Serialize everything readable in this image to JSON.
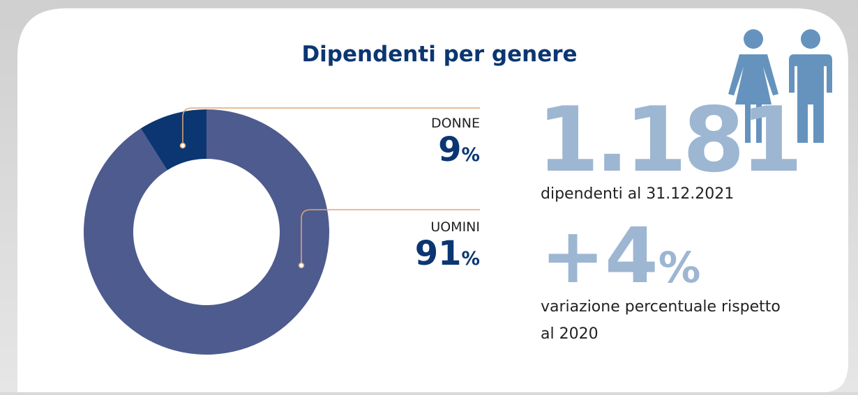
{
  "chart_data": {
    "type": "donut",
    "title": "Dipendenti per genere",
    "categories": [
      "DONNE",
      "UOMINI"
    ],
    "values": [
      9,
      91
    ],
    "value_labels": [
      "9%",
      "91%"
    ],
    "colors": [
      "#0b3672",
      "#4e5b8e"
    ]
  },
  "stats": {
    "total": "1.181",
    "total_caption": "dipendenti al 31.12.2021",
    "change": "+4%",
    "change_caption": [
      "variazione percentuale rispetto",
      "al 2020"
    ]
  }
}
